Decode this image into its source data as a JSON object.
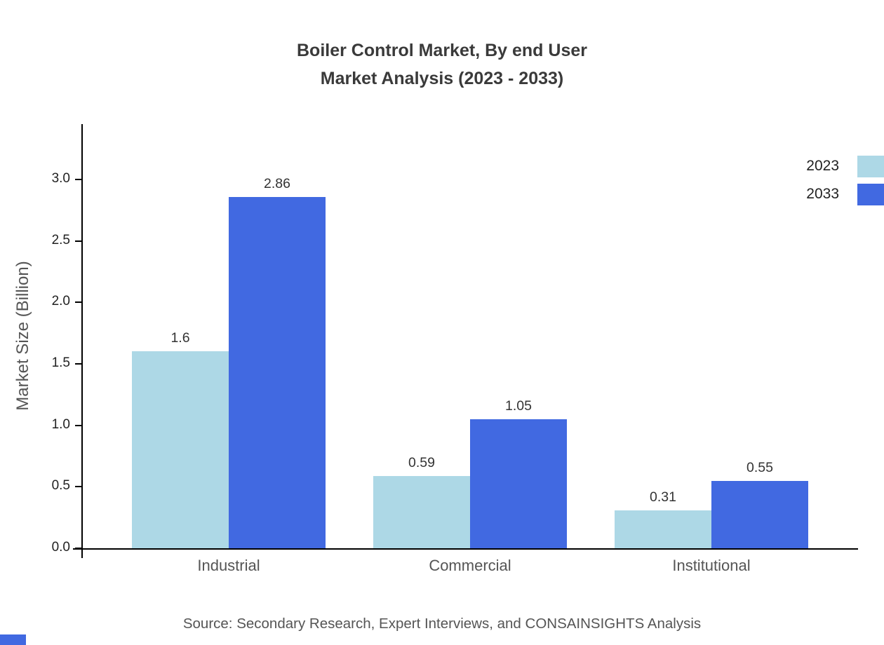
{
  "page": {
    "title_line1": "Boiler Control Market, By end User",
    "title_line2": "Market Analysis (2023 - 2033)",
    "source": "Source: Secondary Research, Expert Interviews, and CONSAINSIGHTS Analysis"
  },
  "colors": {
    "series_2023": "#ADD8E6",
    "series_2033": "#4169E1",
    "axis": "#000000",
    "title_text": "#3a3a3a",
    "label_text": "#555555",
    "value_text": "#333333"
  },
  "chart_data": {
    "type": "bar",
    "title": "Boiler Control Market, By end User Market Analysis (2023 - 2033)",
    "categories": [
      "Industrial",
      "Commercial",
      "Institutional"
    ],
    "series": [
      {
        "name": "2023",
        "color": "#ADD8E6",
        "values": [
          1.6,
          0.59,
          0.31
        ],
        "labels": [
          "1.6",
          "0.59",
          "0.31"
        ]
      },
      {
        "name": "2033",
        "color": "#4169E1",
        "values": [
          2.86,
          1.05,
          0.55
        ],
        "labels": [
          "2.86",
          "1.05",
          "0.55"
        ]
      }
    ],
    "xlabel": "",
    "ylabel": "Market Size (Billion)",
    "ylim": [
      0,
      3.45
    ],
    "yticks": [
      0.0,
      0.5,
      1.0,
      1.5,
      2.0,
      2.5,
      3.0
    ],
    "ytick_labels": [
      "0.0",
      "0.5",
      "1.0",
      "1.5",
      "2.0",
      "2.5",
      "3.0"
    ],
    "grid": false,
    "legend_position": "top-right"
  }
}
